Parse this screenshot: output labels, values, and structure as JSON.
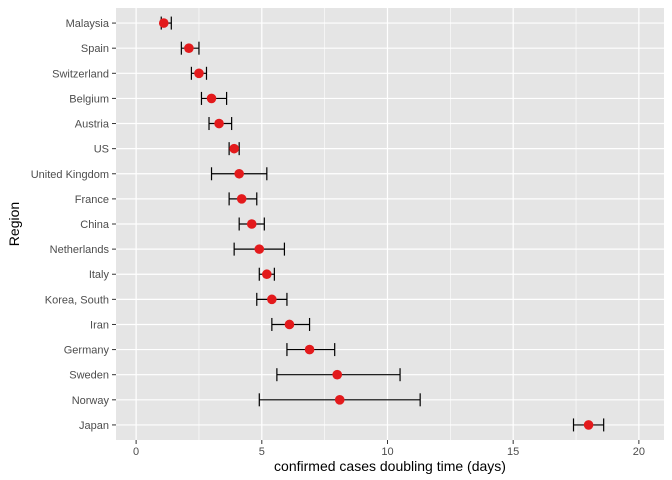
{
  "chart_data": {
    "type": "scatter",
    "title": "",
    "xlabel": "confirmed cases doubling time (days)",
    "ylabel": "Region",
    "xlim": [
      -0.8,
      21.0
    ],
    "xticks": [
      0,
      5,
      10,
      15,
      20
    ],
    "grid": true,
    "legend": "none",
    "colors": {
      "panel": "#e5e5e5",
      "grid_major": "#ffffff",
      "point": "#e31a1c",
      "errorbar": "#000000"
    },
    "categories": [
      "Malaysia",
      "Spain",
      "Switzerland",
      "Belgium",
      "Austria",
      "US",
      "United Kingdom",
      "France",
      "China",
      "Netherlands",
      "Italy",
      "Korea, South",
      "Iran",
      "Germany",
      "Sweden",
      "Norway",
      "Japan"
    ],
    "values": [
      1.1,
      2.1,
      2.5,
      3.0,
      3.3,
      3.9,
      4.1,
      4.2,
      4.6,
      4.9,
      5.2,
      5.4,
      6.1,
      6.9,
      8.0,
      8.1,
      18.0
    ],
    "lower": [
      1.0,
      1.8,
      2.2,
      2.6,
      2.9,
      3.7,
      3.0,
      3.7,
      4.1,
      3.9,
      4.9,
      4.8,
      5.4,
      6.0,
      5.6,
      4.9,
      17.4
    ],
    "upper": [
      1.4,
      2.5,
      2.8,
      3.6,
      3.8,
      4.1,
      5.2,
      4.8,
      5.1,
      5.9,
      5.5,
      6.0,
      6.9,
      7.9,
      10.5,
      11.3,
      18.6
    ]
  }
}
